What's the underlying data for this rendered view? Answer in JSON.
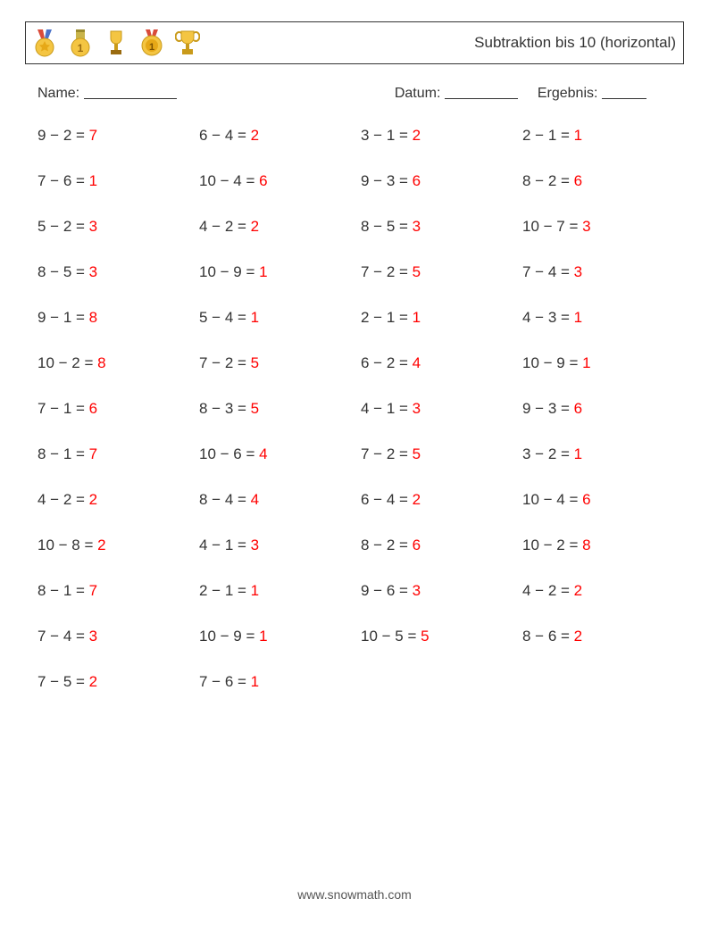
{
  "header": {
    "title": "Subtraktion bis 10 (horizontal)",
    "icons": [
      "medal-star",
      "medal-1",
      "trophy-cup",
      "medal-round-1",
      "trophy-gold"
    ]
  },
  "info": {
    "name_label": "Name:",
    "date_label": "Datum:",
    "result_label": "Ergebnis:"
  },
  "style": {
    "text_color": "#333333",
    "answer_color": "#ff0000",
    "background_color": "#ffffff",
    "border_color": "#333333",
    "font_size_body": 17,
    "font_size_title": 17,
    "font_size_info": 16,
    "columns": 4,
    "row_gap": 31,
    "underline_name_w": 104,
    "underline_date_w": 82,
    "underline_result_w": 50
  },
  "problems": [
    {
      "a": 9,
      "b": 2,
      "ans": 7
    },
    {
      "a": 6,
      "b": 4,
      "ans": 2
    },
    {
      "a": 3,
      "b": 1,
      "ans": 2
    },
    {
      "a": 2,
      "b": 1,
      "ans": 1
    },
    {
      "a": 7,
      "b": 6,
      "ans": 1
    },
    {
      "a": 10,
      "b": 4,
      "ans": 6
    },
    {
      "a": 9,
      "b": 3,
      "ans": 6
    },
    {
      "a": 8,
      "b": 2,
      "ans": 6
    },
    {
      "a": 5,
      "b": 2,
      "ans": 3
    },
    {
      "a": 4,
      "b": 2,
      "ans": 2
    },
    {
      "a": 8,
      "b": 5,
      "ans": 3
    },
    {
      "a": 10,
      "b": 7,
      "ans": 3
    },
    {
      "a": 8,
      "b": 5,
      "ans": 3
    },
    {
      "a": 10,
      "b": 9,
      "ans": 1
    },
    {
      "a": 7,
      "b": 2,
      "ans": 5
    },
    {
      "a": 7,
      "b": 4,
      "ans": 3
    },
    {
      "a": 9,
      "b": 1,
      "ans": 8
    },
    {
      "a": 5,
      "b": 4,
      "ans": 1
    },
    {
      "a": 2,
      "b": 1,
      "ans": 1
    },
    {
      "a": 4,
      "b": 3,
      "ans": 1
    },
    {
      "a": 10,
      "b": 2,
      "ans": 8
    },
    {
      "a": 7,
      "b": 2,
      "ans": 5
    },
    {
      "a": 6,
      "b": 2,
      "ans": 4
    },
    {
      "a": 10,
      "b": 9,
      "ans": 1
    },
    {
      "a": 7,
      "b": 1,
      "ans": 6
    },
    {
      "a": 8,
      "b": 3,
      "ans": 5
    },
    {
      "a": 4,
      "b": 1,
      "ans": 3
    },
    {
      "a": 9,
      "b": 3,
      "ans": 6
    },
    {
      "a": 8,
      "b": 1,
      "ans": 7
    },
    {
      "a": 10,
      "b": 6,
      "ans": 4
    },
    {
      "a": 7,
      "b": 2,
      "ans": 5
    },
    {
      "a": 3,
      "b": 2,
      "ans": 1
    },
    {
      "a": 4,
      "b": 2,
      "ans": 2
    },
    {
      "a": 8,
      "b": 4,
      "ans": 4
    },
    {
      "a": 6,
      "b": 4,
      "ans": 2
    },
    {
      "a": 10,
      "b": 4,
      "ans": 6
    },
    {
      "a": 10,
      "b": 8,
      "ans": 2
    },
    {
      "a": 4,
      "b": 1,
      "ans": 3
    },
    {
      "a": 8,
      "b": 2,
      "ans": 6
    },
    {
      "a": 10,
      "b": 2,
      "ans": 8
    },
    {
      "a": 8,
      "b": 1,
      "ans": 7
    },
    {
      "a": 2,
      "b": 1,
      "ans": 1
    },
    {
      "a": 9,
      "b": 6,
      "ans": 3
    },
    {
      "a": 4,
      "b": 2,
      "ans": 2
    },
    {
      "a": 7,
      "b": 4,
      "ans": 3
    },
    {
      "a": 10,
      "b": 9,
      "ans": 1
    },
    {
      "a": 10,
      "b": 5,
      "ans": 5
    },
    {
      "a": 8,
      "b": 6,
      "ans": 2
    },
    {
      "a": 7,
      "b": 5,
      "ans": 2
    },
    {
      "a": 7,
      "b": 6,
      "ans": 1
    }
  ],
  "footer": {
    "text": "www.snowmath.com"
  }
}
